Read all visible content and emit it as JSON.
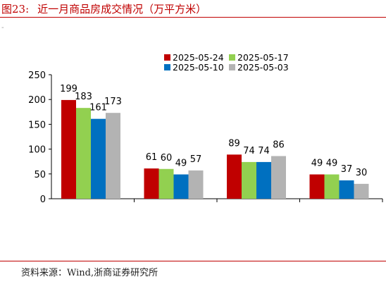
{
  "header": {
    "figure_number": "图23:",
    "title": "近一月商品房成交情况（万平方米）"
  },
  "footer": {
    "source": "资料来源：Wind,浙商证券研究所"
  },
  "chart_data": {
    "type": "bar",
    "title": "近一月商品房成交情况（万平方米）",
    "categories": [
      "",
      "",
      "",
      ""
    ],
    "series": [
      {
        "name": "2025-05-24",
        "color": "#c00000",
        "values": [
          199,
          61,
          89,
          49
        ]
      },
      {
        "name": "2025-05-17",
        "color": "#92d050",
        "values": [
          183,
          60,
          74,
          49
        ]
      },
      {
        "name": "2025-05-10",
        "color": "#0070c0",
        "values": [
          161,
          49,
          74,
          37
        ]
      },
      {
        "name": "2025-05-03",
        "color": "#b3b3b3",
        "values": [
          173,
          57,
          86,
          30
        ]
      }
    ],
    "ylim": [
      0,
      250
    ],
    "yticks": [
      0,
      50,
      100,
      150,
      200,
      250
    ],
    "grid": false,
    "data_labels": true,
    "legend_position": "top-right"
  }
}
